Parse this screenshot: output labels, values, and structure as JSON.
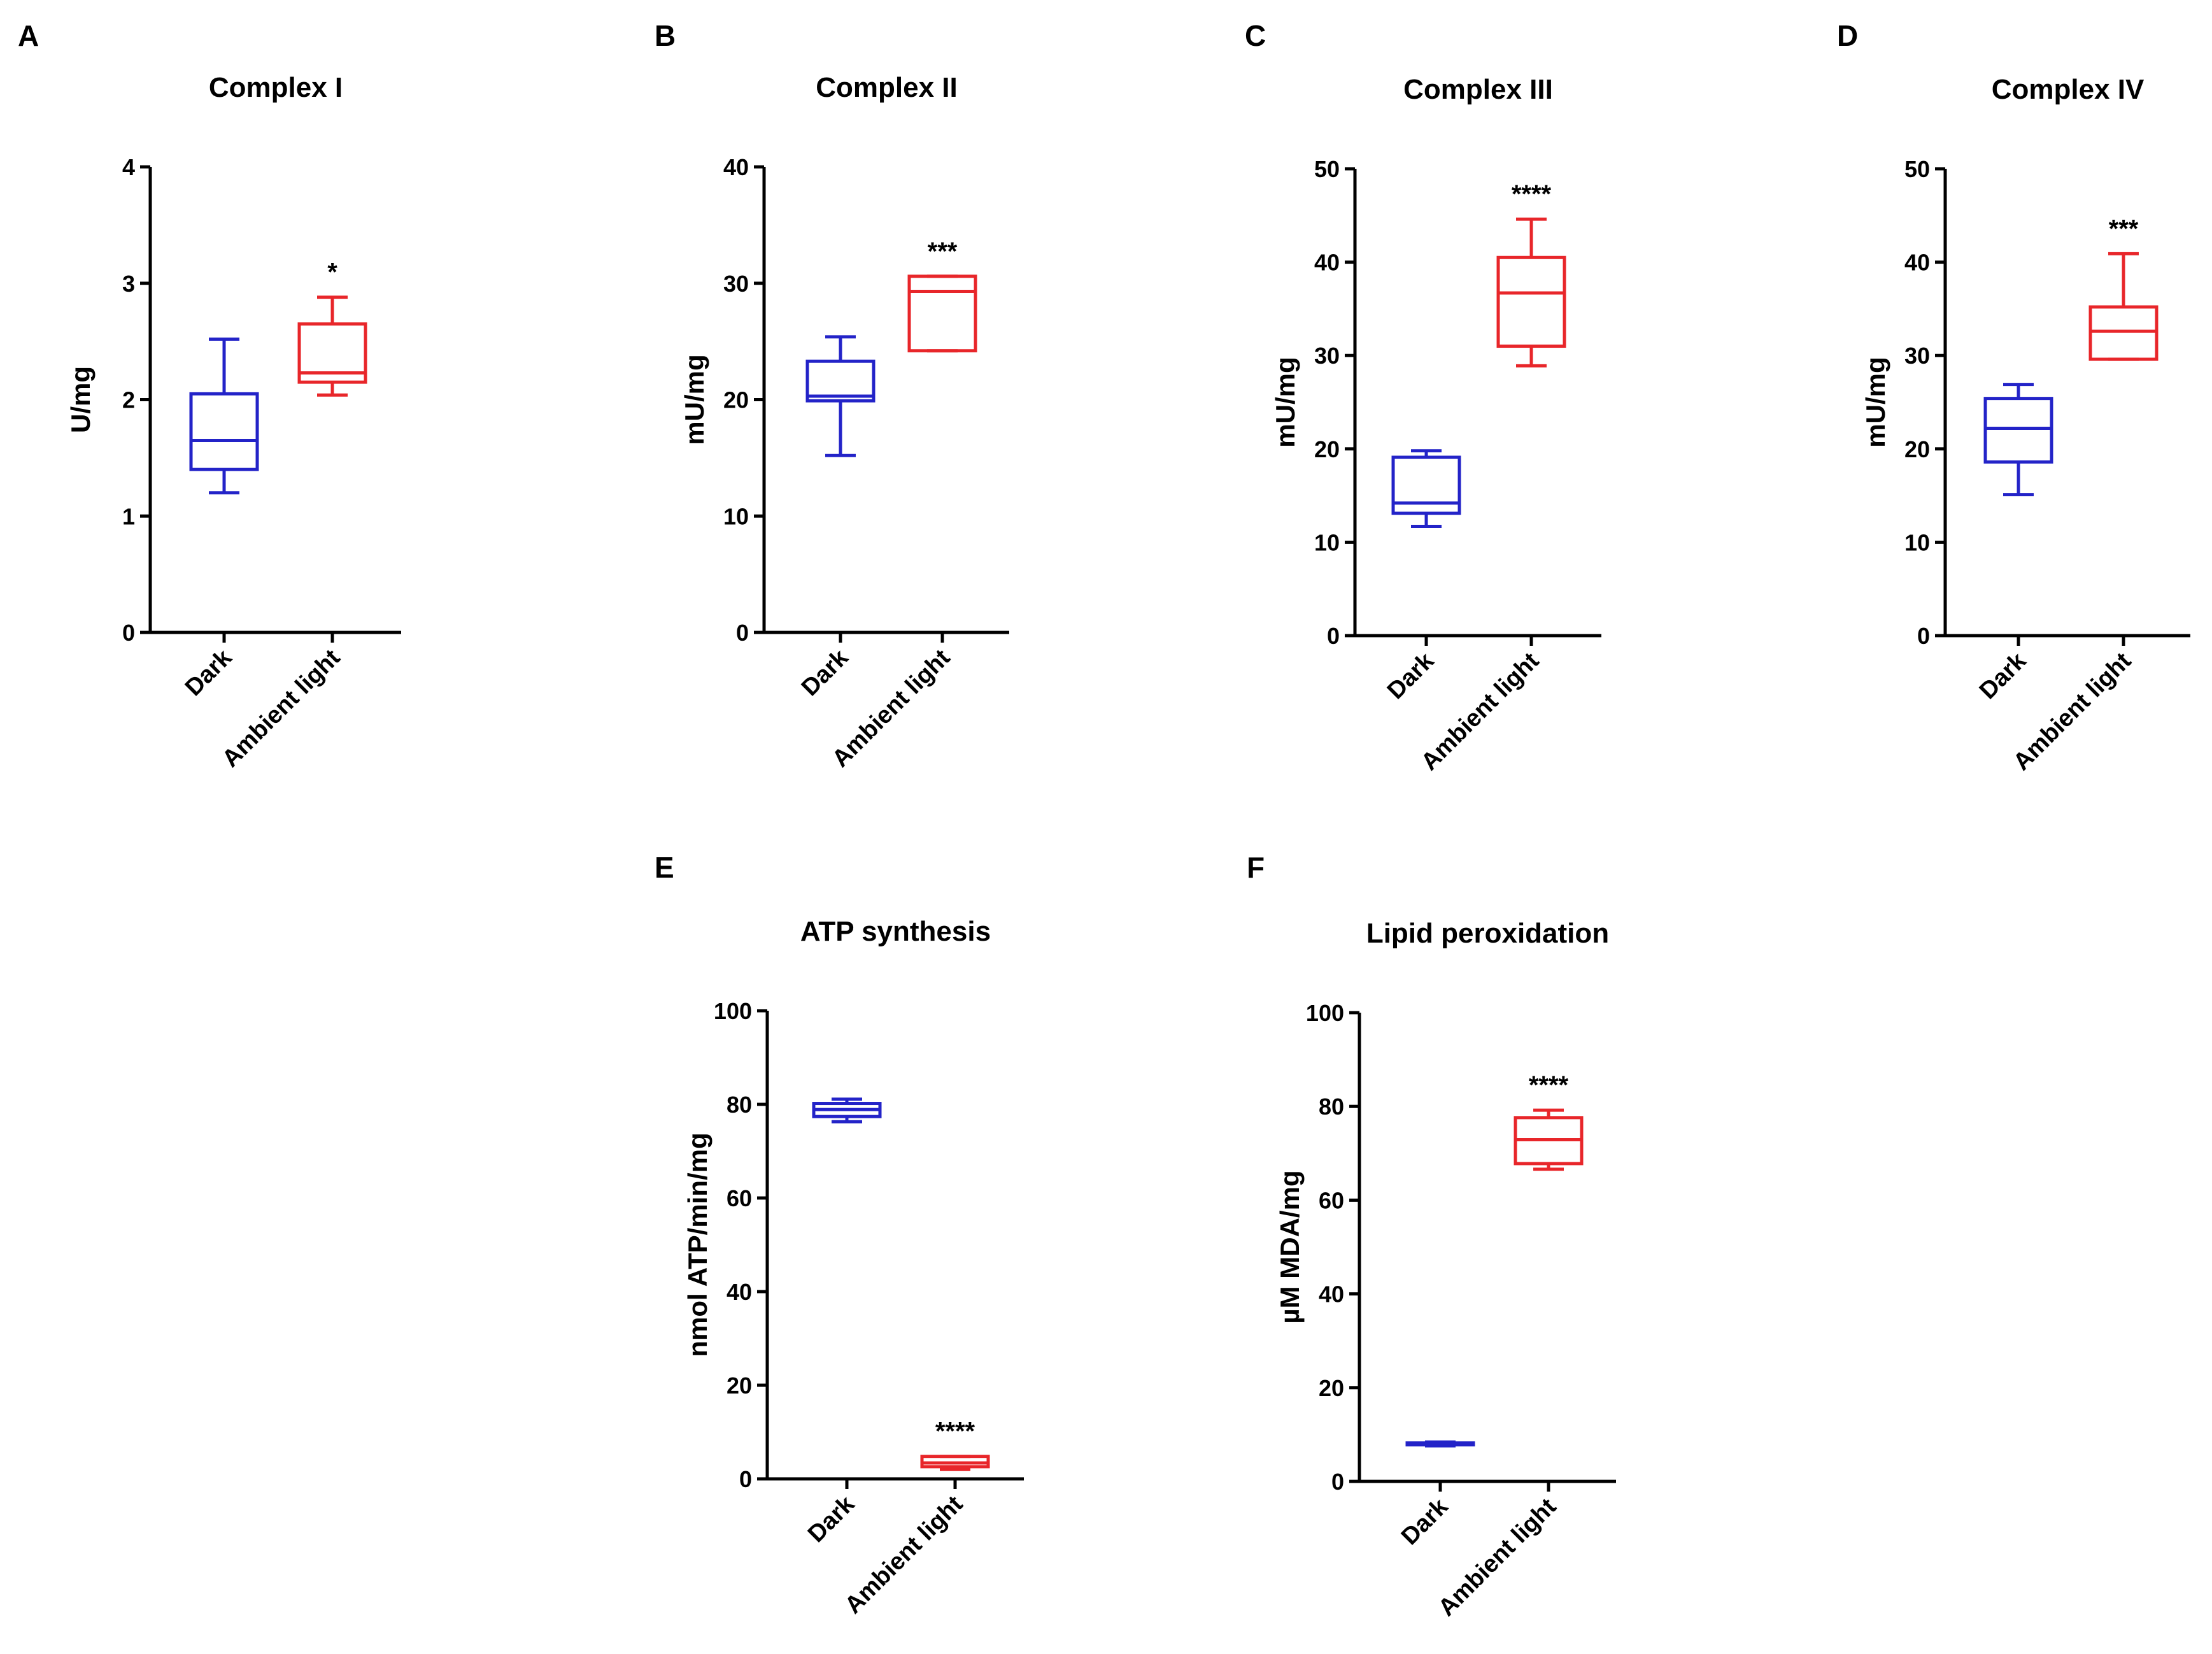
{
  "chart_data": [
    {
      "letter": "A",
      "type": "box",
      "title": "Complex I",
      "ylabel": "U/mg",
      "ylim": [
        0,
        4
      ],
      "yticks": [
        0,
        1,
        2,
        3,
        4
      ],
      "categories": [
        "Dark",
        "Ambient light"
      ],
      "boxes": [
        {
          "category": "Dark",
          "min": 1.2,
          "q1": 1.4,
          "median": 1.65,
          "q3": 2.05,
          "max": 2.52,
          "color": "#2323c8",
          "sig": ""
        },
        {
          "category": "Ambient light",
          "min": 2.04,
          "q1": 2.15,
          "median": 2.23,
          "q3": 2.65,
          "max": 2.88,
          "color": "#e8262a",
          "sig": "*"
        }
      ]
    },
    {
      "letter": "B",
      "type": "box",
      "title": "Complex II",
      "ylabel": "mU/mg",
      "ylim": [
        0,
        40
      ],
      "yticks": [
        0,
        10,
        20,
        30,
        40
      ],
      "categories": [
        "Dark",
        "Ambient light"
      ],
      "boxes": [
        {
          "category": "Dark",
          "min": 15.2,
          "q1": 19.9,
          "median": 20.3,
          "q3": 23.3,
          "max": 25.4,
          "color": "#2323c8",
          "sig": ""
        },
        {
          "category": "Ambient light",
          "min": 24.2,
          "q1": 24.2,
          "median": 29.3,
          "q3": 30.6,
          "max": 30.6,
          "color": "#e8262a",
          "sig": "***"
        }
      ]
    },
    {
      "letter": "C",
      "type": "box",
      "title": "Complex III",
      "ylabel": "mU/mg",
      "ylim": [
        0,
        50
      ],
      "yticks": [
        0,
        10,
        20,
        30,
        40,
        50
      ],
      "categories": [
        "Dark",
        "Ambient light"
      ],
      "boxes": [
        {
          "category": "Dark",
          "min": 11.7,
          "q1": 13.1,
          "median": 14.2,
          "q3": 19.1,
          "max": 19.8,
          "color": "#2323c8",
          "sig": ""
        },
        {
          "category": "Ambient light",
          "min": 28.9,
          "q1": 31.0,
          "median": 36.7,
          "q3": 40.5,
          "max": 44.6,
          "color": "#e8262a",
          "sig": "****"
        }
      ]
    },
    {
      "letter": "D",
      "type": "box",
      "title": "Complex IV",
      "ylabel": "mU/mg",
      "ylim": [
        0,
        50
      ],
      "yticks": [
        0,
        10,
        20,
        30,
        40,
        50
      ],
      "categories": [
        "Dark",
        "Ambient light"
      ],
      "boxes": [
        {
          "category": "Dark",
          "min": 15.1,
          "q1": 18.6,
          "median": 22.2,
          "q3": 25.4,
          "max": 26.9,
          "color": "#2323c8",
          "sig": ""
        },
        {
          "category": "Ambient light",
          "min": 29.6,
          "q1": 29.6,
          "median": 32.6,
          "q3": 35.2,
          "max": 40.9,
          "color": "#e8262a",
          "sig": "***"
        }
      ]
    },
    {
      "letter": "E",
      "type": "box",
      "title": "ATP synthesis",
      "ylabel": "nmol ATP/min/mg",
      "ylim": [
        0,
        100
      ],
      "yticks": [
        0,
        20,
        40,
        60,
        80,
        100
      ],
      "categories": [
        "Dark",
        "Ambient light"
      ],
      "boxes": [
        {
          "category": "Dark",
          "min": 76.3,
          "q1": 77.4,
          "median": 78.9,
          "q3": 80.2,
          "max": 81.1,
          "color": "#2323c8",
          "sig": ""
        },
        {
          "category": "Ambient light",
          "min": 2.0,
          "q1": 2.6,
          "median": 3.4,
          "q3": 4.8,
          "max": 4.8,
          "color": "#e8262a",
          "sig": "****"
        }
      ]
    },
    {
      "letter": "F",
      "type": "box",
      "title": "Lipid peroxidation",
      "ylabel": "µM MDA/mg",
      "ylim": [
        0,
        100
      ],
      "yticks": [
        0,
        20,
        40,
        60,
        80,
        100
      ],
      "categories": [
        "Dark",
        "Ambient light"
      ],
      "boxes": [
        {
          "category": "Dark",
          "min": 7.6,
          "q1": 7.8,
          "median": 8.0,
          "q3": 8.2,
          "max": 8.4,
          "color": "#2323c8",
          "sig": ""
        },
        {
          "category": "Ambient light",
          "min": 66.6,
          "q1": 67.8,
          "median": 72.9,
          "q3": 77.6,
          "max": 79.2,
          "color": "#e8262a",
          "sig": "****"
        }
      ]
    }
  ]
}
